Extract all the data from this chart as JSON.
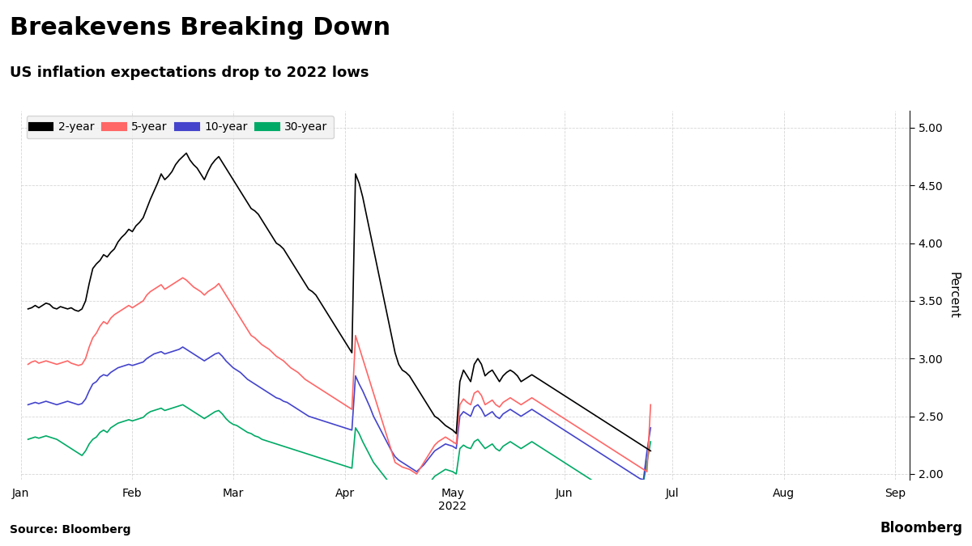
{
  "title": "Breakevens Breaking Down",
  "subtitle": "US inflation expectations drop to 2022 lows",
  "ylabel": "Percent",
  "source": "Source: Bloomberg",
  "bloomberg_logo": "Bloomberg",
  "ylim": [
    1.95,
    5.15
  ],
  "yticks": [
    2.0,
    2.5,
    3.0,
    3.5,
    4.0,
    4.5,
    5.0
  ],
  "colors": {
    "2year": "#000000",
    "5year": "#ff6666",
    "10year": "#4444cc",
    "30year": "#00aa66"
  },
  "legend_labels": [
    "2-year",
    "5-year",
    "10-year",
    "30-year"
  ],
  "background_color": "#ffffff",
  "grid_color": "#cccccc",
  "2year": [
    3.43,
    3.44,
    3.46,
    3.44,
    3.46,
    3.48,
    3.47,
    3.44,
    3.43,
    3.45,
    3.44,
    3.43,
    3.44,
    3.42,
    3.41,
    3.43,
    3.5,
    3.65,
    3.78,
    3.82,
    3.85,
    3.9,
    3.88,
    3.92,
    3.95,
    4.01,
    4.05,
    4.08,
    4.12,
    4.1,
    4.15,
    4.18,
    4.22,
    4.3,
    4.38,
    4.45,
    4.52,
    4.6,
    4.55,
    4.58,
    4.62,
    4.68,
    4.72,
    4.75,
    4.78,
    4.72,
    4.68,
    4.65,
    4.6,
    4.55,
    4.62,
    4.68,
    4.72,
    4.75,
    4.7,
    4.65,
    4.6,
    4.55,
    4.5,
    4.45,
    4.4,
    4.35,
    4.3,
    4.28,
    4.25,
    4.2,
    4.15,
    4.1,
    4.05,
    4.0,
    3.98,
    3.95,
    3.9,
    3.85,
    3.8,
    3.75,
    3.7,
    3.65,
    3.6,
    3.58,
    3.55,
    3.5,
    3.45,
    3.4,
    3.35,
    3.3,
    3.25,
    3.2,
    3.15,
    3.1,
    3.05,
    4.6,
    4.52,
    4.4,
    4.25,
    4.1,
    3.95,
    3.8,
    3.65,
    3.5,
    3.35,
    3.2,
    3.05,
    2.95,
    2.9,
    2.88,
    2.85,
    2.8,
    2.75,
    2.7,
    2.65,
    2.6,
    2.55,
    2.5,
    2.48,
    2.45,
    2.42,
    2.4,
    2.38,
    2.35,
    2.8,
    2.9,
    2.85,
    2.8,
    2.95,
    3.0,
    2.95,
    2.85,
    2.88,
    2.9,
    2.85,
    2.8,
    2.85,
    2.88,
    2.9,
    2.88,
    2.85,
    2.8,
    2.82,
    2.84,
    2.86,
    2.84,
    2.82,
    2.8,
    2.78,
    2.76,
    2.74,
    2.72,
    2.7,
    2.68,
    2.66,
    2.64,
    2.62,
    2.6,
    2.58,
    2.56,
    2.54,
    2.52,
    2.5,
    2.48,
    2.46,
    2.44,
    2.42,
    2.4,
    2.38,
    2.36,
    2.34,
    2.32,
    2.3,
    2.28,
    2.26,
    2.24,
    2.22,
    2.2
  ],
  "5year": [
    2.95,
    2.97,
    2.98,
    2.96,
    2.97,
    2.98,
    2.97,
    2.96,
    2.95,
    2.96,
    2.97,
    2.98,
    2.96,
    2.95,
    2.94,
    2.95,
    3.0,
    3.1,
    3.18,
    3.22,
    3.28,
    3.32,
    3.3,
    3.35,
    3.38,
    3.4,
    3.42,
    3.44,
    3.46,
    3.44,
    3.46,
    3.48,
    3.5,
    3.55,
    3.58,
    3.6,
    3.62,
    3.64,
    3.6,
    3.62,
    3.64,
    3.66,
    3.68,
    3.7,
    3.68,
    3.65,
    3.62,
    3.6,
    3.58,
    3.55,
    3.58,
    3.6,
    3.62,
    3.65,
    3.6,
    3.55,
    3.5,
    3.45,
    3.4,
    3.35,
    3.3,
    3.25,
    3.2,
    3.18,
    3.15,
    3.12,
    3.1,
    3.08,
    3.05,
    3.02,
    3.0,
    2.98,
    2.95,
    2.92,
    2.9,
    2.88,
    2.85,
    2.82,
    2.8,
    2.78,
    2.76,
    2.74,
    2.72,
    2.7,
    2.68,
    2.66,
    2.64,
    2.62,
    2.6,
    2.58,
    2.56,
    3.2,
    3.1,
    3.0,
    2.9,
    2.8,
    2.7,
    2.6,
    2.5,
    2.4,
    2.3,
    2.2,
    2.1,
    2.08,
    2.06,
    2.05,
    2.04,
    2.02,
    2.0,
    2.05,
    2.1,
    2.15,
    2.2,
    2.25,
    2.28,
    2.3,
    2.32,
    2.3,
    2.28,
    2.26,
    2.6,
    2.65,
    2.62,
    2.6,
    2.7,
    2.72,
    2.68,
    2.6,
    2.62,
    2.64,
    2.6,
    2.58,
    2.62,
    2.64,
    2.66,
    2.64,
    2.62,
    2.6,
    2.62,
    2.64,
    2.66,
    2.64,
    2.62,
    2.6,
    2.58,
    2.56,
    2.54,
    2.52,
    2.5,
    2.48,
    2.46,
    2.44,
    2.42,
    2.4,
    2.38,
    2.36,
    2.34,
    2.32,
    2.3,
    2.28,
    2.26,
    2.24,
    2.22,
    2.2,
    2.18,
    2.16,
    2.14,
    2.12,
    2.1,
    2.08,
    2.06,
    2.04,
    2.02,
    2.6
  ],
  "10year": [
    2.6,
    2.61,
    2.62,
    2.61,
    2.62,
    2.63,
    2.62,
    2.61,
    2.6,
    2.61,
    2.62,
    2.63,
    2.62,
    2.61,
    2.6,
    2.61,
    2.65,
    2.72,
    2.78,
    2.8,
    2.84,
    2.86,
    2.85,
    2.88,
    2.9,
    2.92,
    2.93,
    2.94,
    2.95,
    2.94,
    2.95,
    2.96,
    2.97,
    3.0,
    3.02,
    3.04,
    3.05,
    3.06,
    3.04,
    3.05,
    3.06,
    3.07,
    3.08,
    3.1,
    3.08,
    3.06,
    3.04,
    3.02,
    3.0,
    2.98,
    3.0,
    3.02,
    3.04,
    3.05,
    3.02,
    2.98,
    2.95,
    2.92,
    2.9,
    2.88,
    2.85,
    2.82,
    2.8,
    2.78,
    2.76,
    2.74,
    2.72,
    2.7,
    2.68,
    2.66,
    2.65,
    2.63,
    2.62,
    2.6,
    2.58,
    2.56,
    2.54,
    2.52,
    2.5,
    2.49,
    2.48,
    2.47,
    2.46,
    2.45,
    2.44,
    2.43,
    2.42,
    2.41,
    2.4,
    2.39,
    2.38,
    2.85,
    2.78,
    2.72,
    2.65,
    2.58,
    2.5,
    2.44,
    2.38,
    2.32,
    2.26,
    2.2,
    2.15,
    2.12,
    2.1,
    2.08,
    2.06,
    2.04,
    2.02,
    2.05,
    2.08,
    2.12,
    2.16,
    2.2,
    2.22,
    2.24,
    2.26,
    2.25,
    2.24,
    2.22,
    2.5,
    2.54,
    2.52,
    2.5,
    2.58,
    2.6,
    2.56,
    2.5,
    2.52,
    2.54,
    2.5,
    2.48,
    2.52,
    2.54,
    2.56,
    2.54,
    2.52,
    2.5,
    2.52,
    2.54,
    2.56,
    2.54,
    2.52,
    2.5,
    2.48,
    2.46,
    2.44,
    2.42,
    2.4,
    2.38,
    2.36,
    2.34,
    2.32,
    2.3,
    2.28,
    2.26,
    2.24,
    2.22,
    2.2,
    2.18,
    2.16,
    2.14,
    2.12,
    2.1,
    2.08,
    2.06,
    2.04,
    2.02,
    2.0,
    1.98,
    1.96,
    1.95,
    2.2,
    2.4
  ],
  "30year": [
    2.3,
    2.31,
    2.32,
    2.31,
    2.32,
    2.33,
    2.32,
    2.31,
    2.3,
    2.28,
    2.26,
    2.24,
    2.22,
    2.2,
    2.18,
    2.16,
    2.2,
    2.26,
    2.3,
    2.32,
    2.36,
    2.38,
    2.36,
    2.4,
    2.42,
    2.44,
    2.45,
    2.46,
    2.47,
    2.46,
    2.47,
    2.48,
    2.49,
    2.52,
    2.54,
    2.55,
    2.56,
    2.57,
    2.55,
    2.56,
    2.57,
    2.58,
    2.59,
    2.6,
    2.58,
    2.56,
    2.54,
    2.52,
    2.5,
    2.48,
    2.5,
    2.52,
    2.54,
    2.55,
    2.52,
    2.48,
    2.45,
    2.43,
    2.42,
    2.4,
    2.38,
    2.36,
    2.35,
    2.33,
    2.32,
    2.3,
    2.29,
    2.28,
    2.27,
    2.26,
    2.25,
    2.24,
    2.23,
    2.22,
    2.21,
    2.2,
    2.19,
    2.18,
    2.17,
    2.16,
    2.15,
    2.14,
    2.13,
    2.12,
    2.11,
    2.1,
    2.09,
    2.08,
    2.07,
    2.06,
    2.05,
    2.4,
    2.35,
    2.28,
    2.22,
    2.16,
    2.1,
    2.06,
    2.02,
    1.98,
    1.94,
    1.9,
    1.88,
    1.86,
    1.86,
    1.86,
    1.85,
    1.85,
    1.85,
    1.86,
    1.88,
    1.9,
    1.94,
    1.98,
    2.0,
    2.02,
    2.04,
    2.03,
    2.02,
    2.0,
    2.22,
    2.25,
    2.23,
    2.22,
    2.28,
    2.3,
    2.26,
    2.22,
    2.24,
    2.26,
    2.22,
    2.2,
    2.24,
    2.26,
    2.28,
    2.26,
    2.24,
    2.22,
    2.24,
    2.26,
    2.28,
    2.26,
    2.24,
    2.22,
    2.2,
    2.18,
    2.16,
    2.14,
    2.12,
    2.1,
    2.08,
    2.06,
    2.04,
    2.02,
    2.0,
    1.98,
    1.96,
    1.94,
    1.92,
    1.9,
    1.88,
    1.86,
    1.85,
    1.85,
    1.86,
    1.87,
    1.88,
    1.89,
    1.9,
    1.91,
    1.92,
    1.93,
    2.1,
    2.28
  ]
}
